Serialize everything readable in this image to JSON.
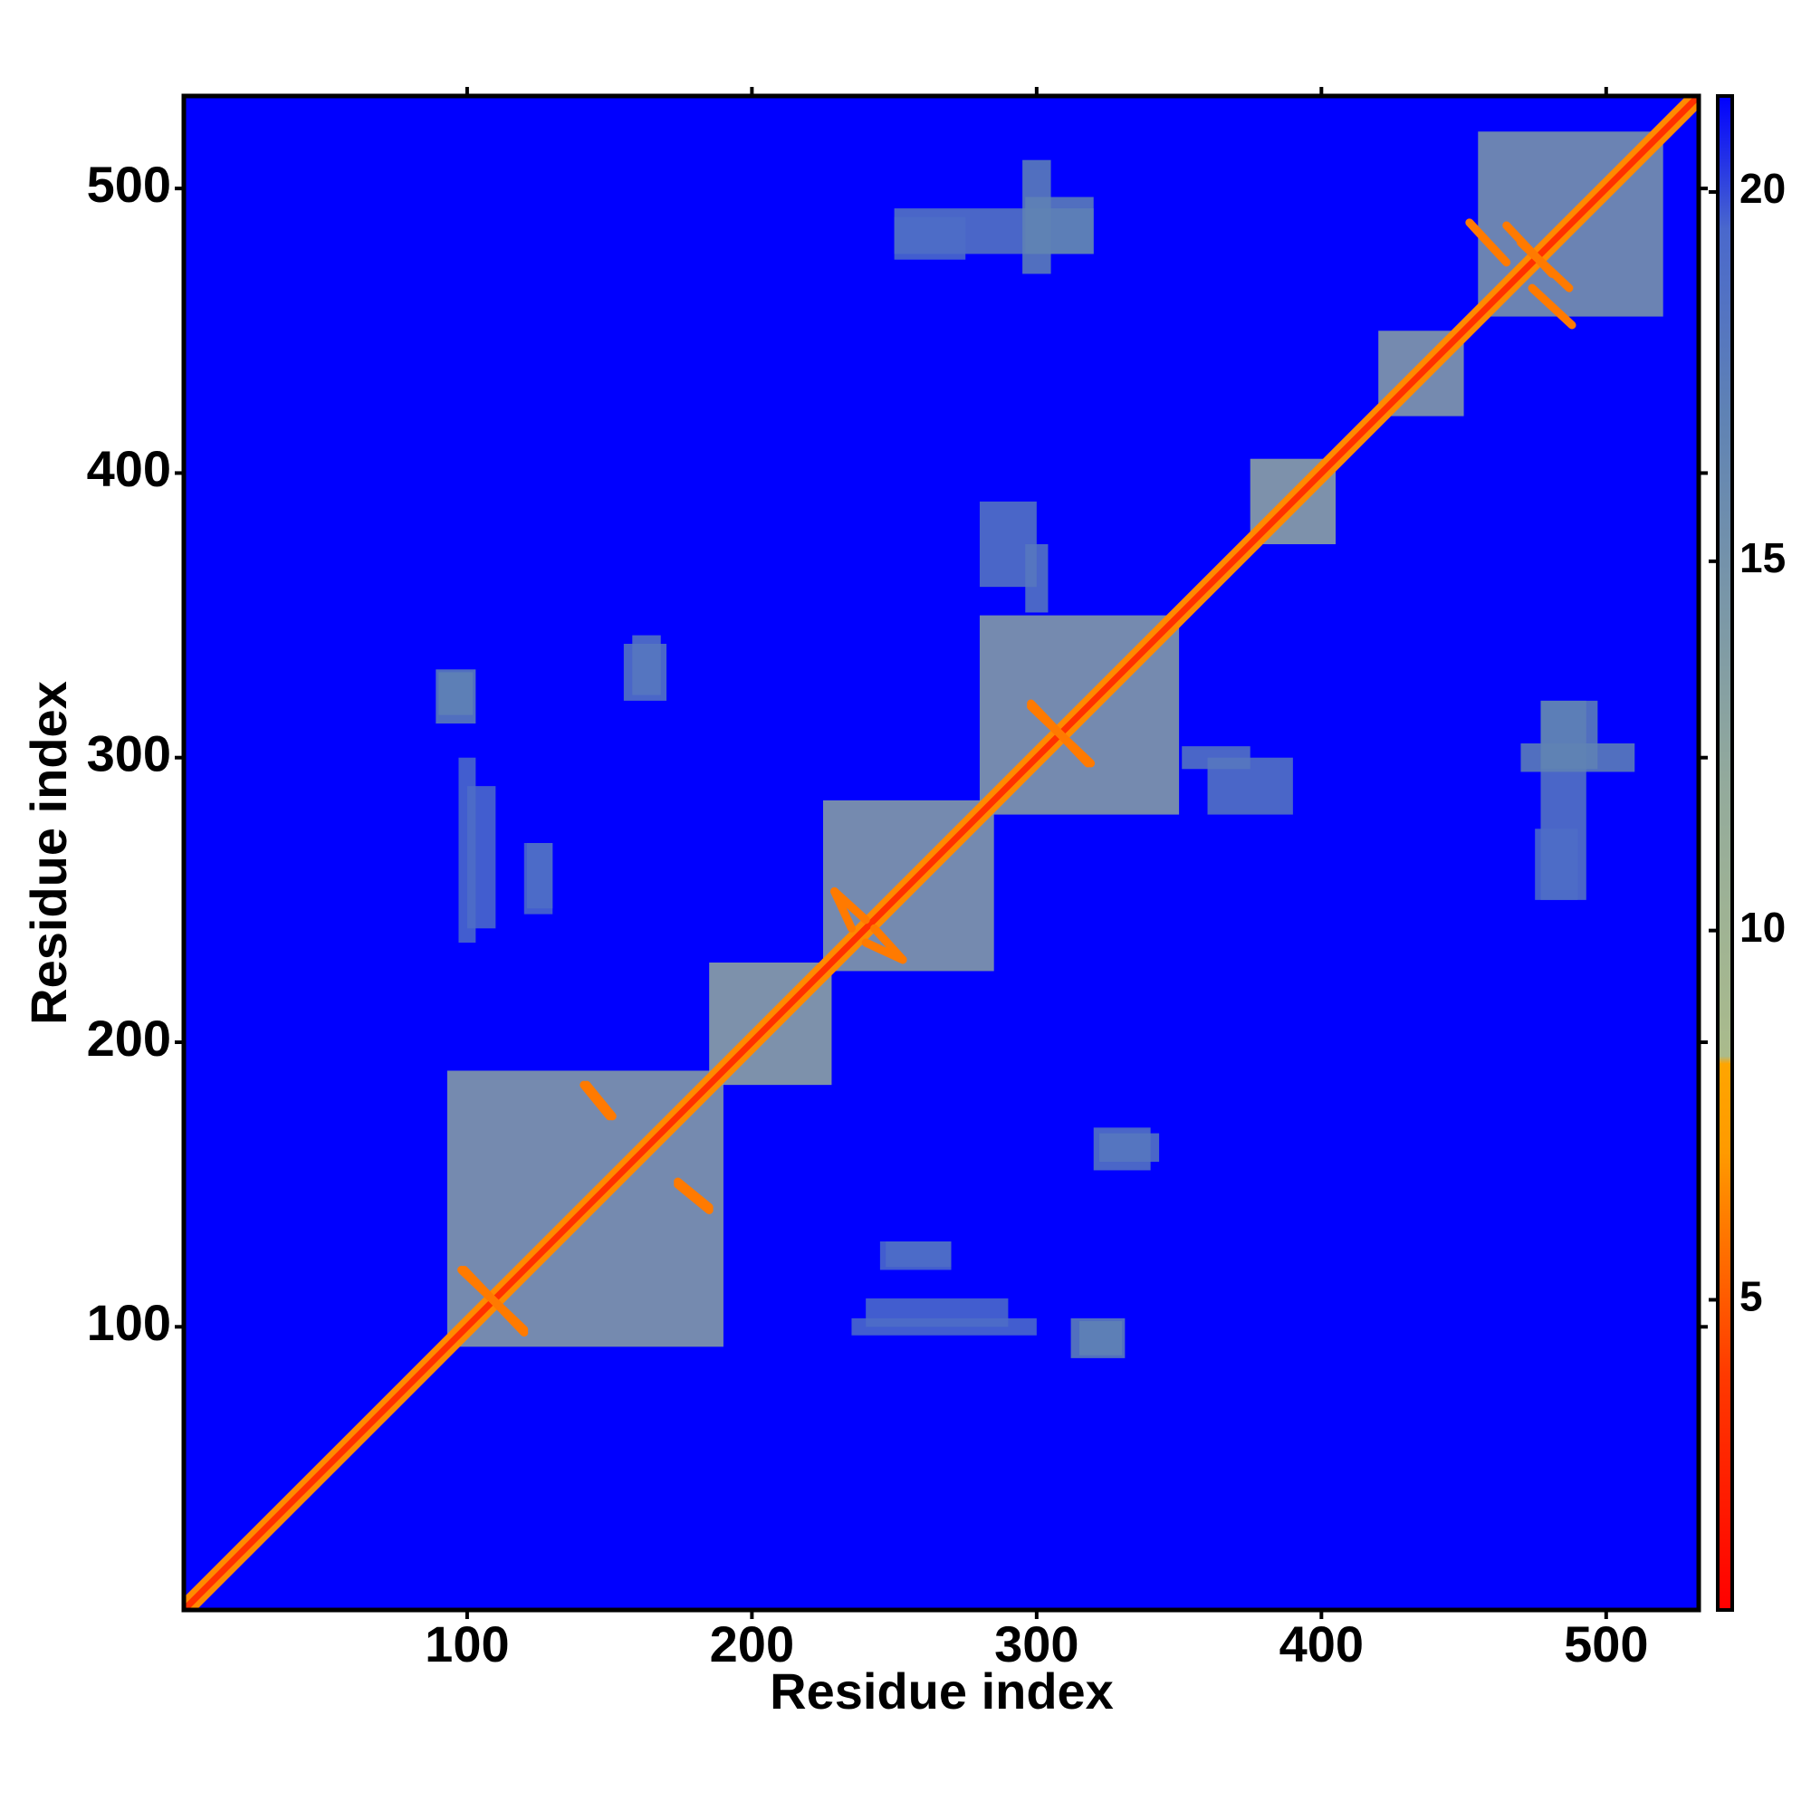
{
  "chart_data": {
    "type": "heatmap",
    "xlabel": "Residue index",
    "ylabel": "Residue index",
    "xlim": [
      0.5,
      532.5
    ],
    "ylim": [
      0.5,
      532.5
    ],
    "xticks": [
      100,
      200,
      300,
      400,
      500
    ],
    "yticks": [
      100,
      200,
      300,
      400,
      500
    ],
    "symmetric": true,
    "colorbar": {
      "lim": [
        0.8,
        21.3
      ],
      "ticks": [
        5,
        10,
        15,
        20
      ]
    },
    "colorscale": [
      {
        "value": 0.8,
        "color": "#ff0000"
      },
      {
        "value": 4,
        "color": "#ff3a00"
      },
      {
        "value": 7,
        "color": "#ff9a00"
      },
      {
        "value": 8.2,
        "color": "#ffa500"
      },
      {
        "value": 8.3,
        "color": "#aabb8c"
      },
      {
        "value": 12,
        "color": "#93aa9c"
      },
      {
        "value": 17,
        "color": "#5f82b4"
      },
      {
        "value": 19.5,
        "color": "#4a68cc"
      },
      {
        "value": 21.3,
        "color": "#0000ff"
      }
    ],
    "background": 21.3,
    "diagonal": {
      "value": 3.5
    },
    "near_diagonal": {
      "value": 6.5
    },
    "blocks": [
      {
        "x": [
          93,
          190
        ],
        "y": [
          93,
          190
        ],
        "value": 13
      },
      {
        "x": [
          185,
          228
        ],
        "y": [
          185,
          228
        ],
        "value": 12
      },
      {
        "x": [
          225,
          285
        ],
        "y": [
          225,
          285
        ],
        "value": 13
      },
      {
        "x": [
          280,
          350
        ],
        "y": [
          280,
          350
        ],
        "value": 13
      },
      {
        "x": [
          375,
          405
        ],
        "y": [
          375,
          405
        ],
        "value": 12
      },
      {
        "x": [
          420,
          450
        ],
        "y": [
          420,
          450
        ],
        "value": 13
      },
      {
        "x": [
          455,
          520
        ],
        "y": [
          455,
          520
        ],
        "value": 14
      },
      {
        "x": [
          90,
          102
        ],
        "y": [
          315,
          330
        ],
        "value": 17
      },
      {
        "x": [
          100,
          110
        ],
        "y": [
          240,
          290
        ],
        "value": 19
      },
      {
        "x": [
          120,
          130
        ],
        "y": [
          245,
          270
        ],
        "value": 19
      },
      {
        "x": [
          155,
          170
        ],
        "y": [
          320,
          340
        ],
        "value": 18
      },
      {
        "x": [
          250,
          320
        ],
        "y": [
          477,
          493
        ],
        "value": 18
      },
      {
        "x": [
          295,
          305
        ],
        "y": [
          470,
          510
        ],
        "value": 17
      },
      {
        "x": [
          280,
          300
        ],
        "y": [
          360,
          390
        ],
        "value": 18
      },
      {
        "x": [
          351,
          375
        ],
        "y": [
          296,
          304
        ],
        "value": 18
      },
      {
        "x": [
          477,
          497
        ],
        "y": [
          296,
          320
        ],
        "value": 17
      },
      {
        "x": [
          475,
          490
        ],
        "y": [
          250,
          275
        ],
        "value": 19
      },
      {
        "x": [
          322,
          343
        ],
        "y": [
          158,
          168
        ],
        "value": 18
      },
      {
        "x": [
          247,
          270
        ],
        "y": [
          121,
          130
        ],
        "value": 19
      },
      {
        "x": [
          312,
          331
        ],
        "y": [
          89,
          103
        ],
        "value": 17
      },
      {
        "x": [
          235,
          300
        ],
        "y": [
          97,
          103
        ],
        "value": 19
      }
    ],
    "strands": [
      {
        "x": [
          98,
          120
        ],
        "y": [
          120,
          99
        ],
        "value": 6
      },
      {
        "x": [
          142,
          151
        ],
        "y": [
          185,
          174
        ],
        "value": 6
      },
      {
        "x": [
          174,
          185
        ],
        "y": [
          150,
          141
        ],
        "value": 6
      },
      {
        "x": [
          229,
          240
        ],
        "y": [
          253,
          243
        ],
        "value": 6
      },
      {
        "x": [
          240,
          253
        ],
        "y": [
          235,
          229
        ],
        "value": 6
      },
      {
        "x": [
          298,
          319
        ],
        "y": [
          318,
          298
        ],
        "value": 6
      },
      {
        "x": [
          452,
          465
        ],
        "y": [
          488,
          474
        ],
        "value": 6
      },
      {
        "x": [
          465,
          481
        ],
        "y": [
          487,
          470
        ],
        "value": 6
      }
    ]
  }
}
